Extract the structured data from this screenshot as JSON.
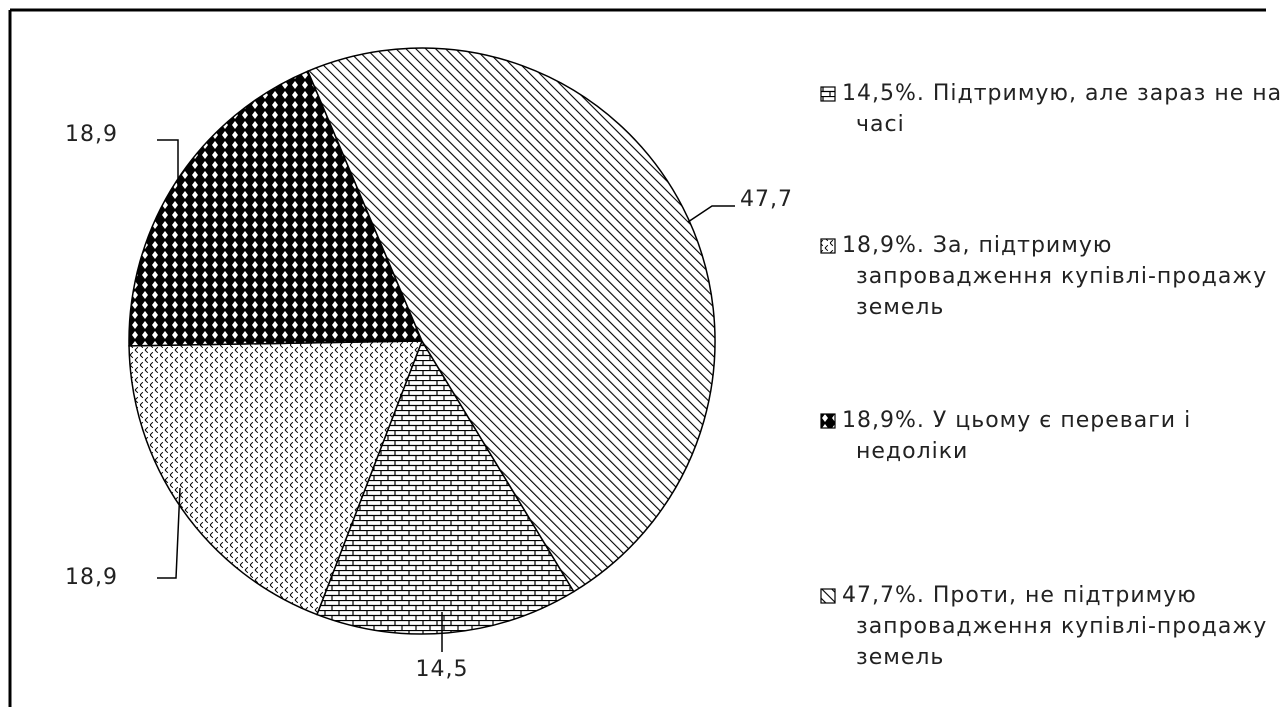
{
  "chart_data": {
    "type": "pie",
    "categories": [
      "14,5%.   Підтримую, але зараз не на часі",
      "18,9%.  За, підтримую запровадження купівлі-продажу земель",
      "18,9%.  У цьому є переваги і недоліки",
      "47,7%.   Проти, не підтримую запровадження купівлі-продажу земель"
    ],
    "values": [
      14.5,
      18.9,
      18.9,
      47.7
    ],
    "value_labels": [
      "14,5",
      "18,9",
      "18,9",
      "47,7"
    ]
  }
}
